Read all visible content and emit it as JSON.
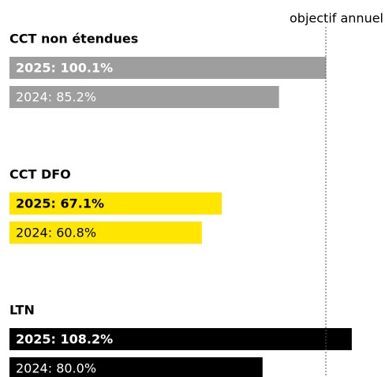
{
  "chart_data": {
    "type": "bar",
    "orientation": "horizontal",
    "categories": [
      "CCT non étendues",
      "CCT DFO",
      "LTN"
    ],
    "colors": [
      "#9e9e9e",
      "#ffe600",
      "#000000"
    ],
    "label_colors": [
      "#ffffff",
      "#000000",
      "#ffffff"
    ],
    "series": [
      {
        "values": [
          100.1,
          67.1,
          108.2
        ],
        "value_labels": [
          "2025: 100.1%",
          "2025: 67.1%",
          "2025: 108.2%"
        ],
        "bold": true
      },
      {
        "values": [
          85.2,
          60.8,
          80.0
        ],
        "value_labels": [
          "2024: 85.2%",
          "2024: 60.8%",
          "2024: 80.0%"
        ],
        "bold": false
      }
    ],
    "xlim": [
      0,
      118.7
    ],
    "annotation": {
      "text": "objectif annuel",
      "value": 100
    }
  }
}
